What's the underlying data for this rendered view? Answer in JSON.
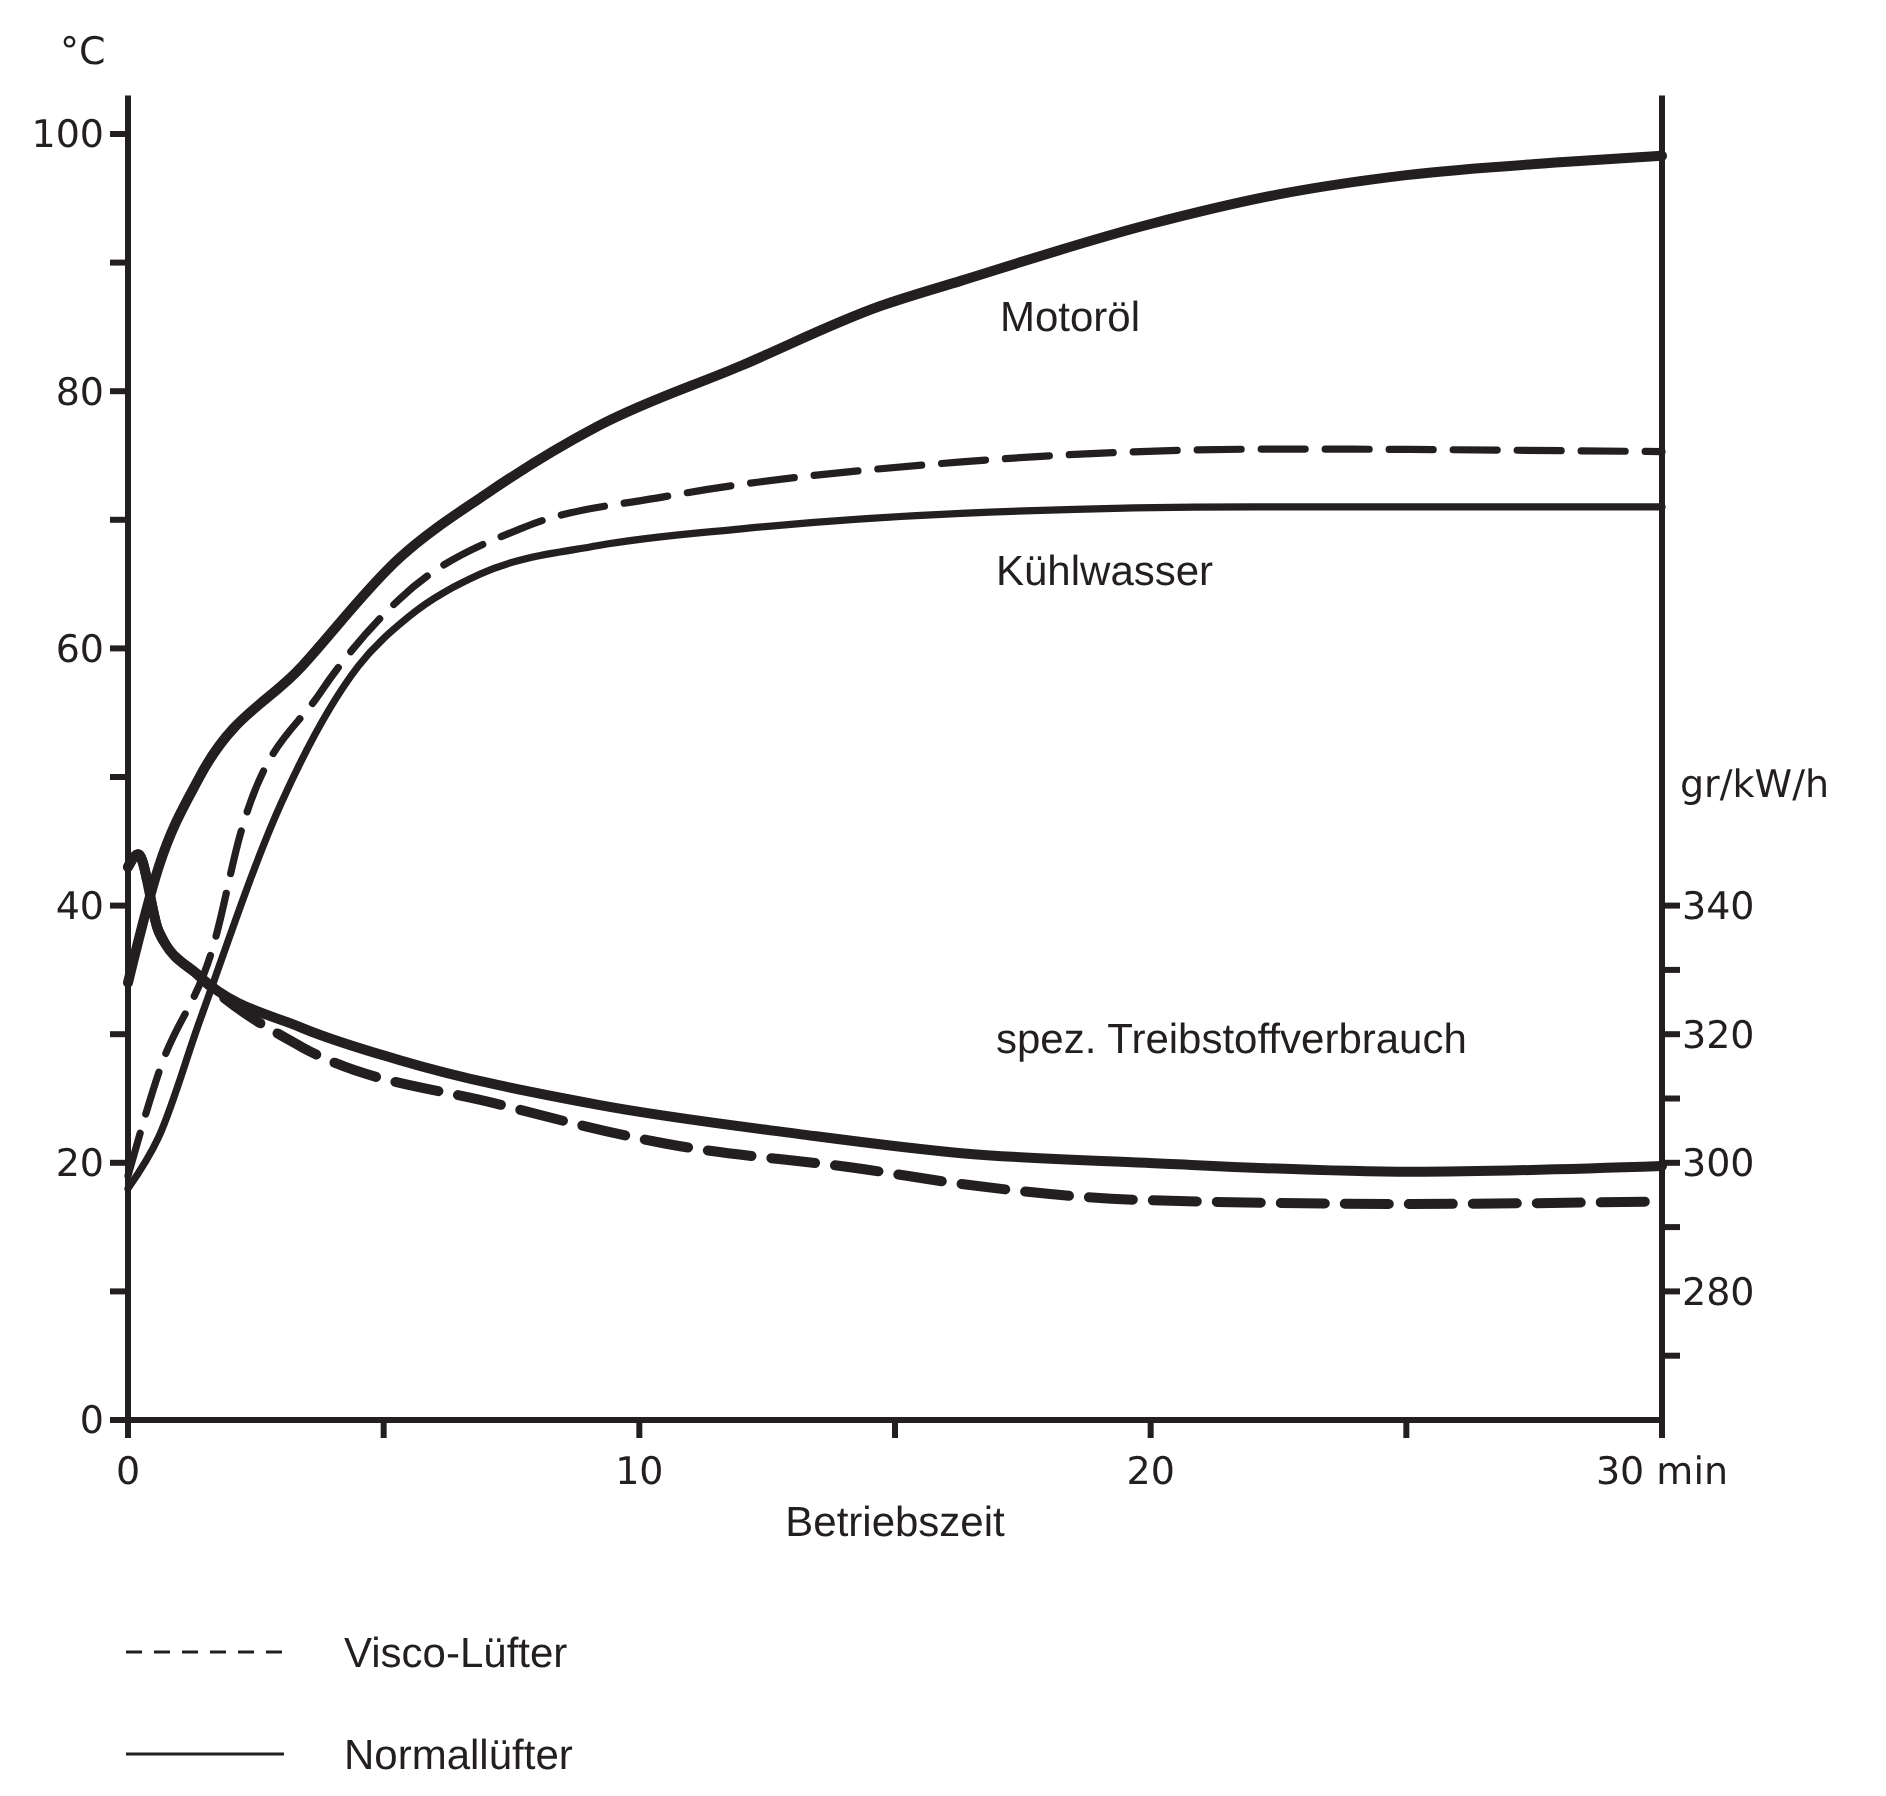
{
  "chart_data": {
    "type": "line",
    "xlabel": "Betriebszeit",
    "ylabel": "°C",
    "y2label": "gr/kW/h",
    "xlim": [
      0,
      30
    ],
    "xticks": [
      0,
      {
        "value": 5,
        "label": null
      },
      10,
      {
        "value": 15,
        "label": null
      },
      20,
      {
        "value": 25,
        "label": null
      },
      {
        "value": 30,
        "label": "30 min"
      }
    ],
    "ylim": [
      0,
      103
    ],
    "yticks": [
      0,
      {
        "value": 10,
        "label": null
      },
      20,
      {
        "value": 30,
        "label": null
      },
      40,
      {
        "value": 50,
        "label": null
      },
      60,
      {
        "value": 70,
        "label": null
      },
      80,
      {
        "value": 90,
        "label": null
      },
      100
    ],
    "y2lim": [
      260,
      466
    ],
    "y2ticks": [
      {
        "value": 270,
        "label": null
      },
      280,
      {
        "value": 290,
        "label": null
      },
      300,
      {
        "value": 310,
        "label": null
      },
      320,
      {
        "value": 330,
        "label": null
      },
      340
    ],
    "grid": false,
    "legend": "bottom",
    "marker": "none",
    "series": [
      {
        "color": "#231f20",
        "line_style": "solid",
        "x": [
          0,
          0.6,
          1.4,
          3.4,
          5.3,
          7,
          9.2,
          12,
          14.7,
          16.3,
          20,
          22.5,
          25,
          28,
          30
        ],
        "values": [
          34,
          43,
          50,
          58.6,
          67,
          72,
          77.3,
          82,
          86.6,
          88.6,
          93,
          95.3,
          96.8,
          97.8,
          98.3
        ]
      },
      {
        "name": "Visco-Lüfter",
        "color": "#231f20",
        "line_style": "dashed",
        "x": [
          0,
          0.6,
          1.7,
          2.2,
          3.75,
          5.3,
          7.8,
          10.5,
          16.3,
          22.5,
          30
        ],
        "values": [
          19,
          27,
          37.3,
          45.6,
          56.5,
          63.8,
          69.5,
          71.8,
          74.5,
          75.5,
          75.3
        ]
      },
      {
        "name": "Normallüfter",
        "color": "#231f20",
        "line_style": "solid",
        "x": [
          0,
          0.6,
          1.4,
          3,
          4.5,
          5.5,
          6.9,
          9.2,
          12,
          16.3,
          22,
          30
        ],
        "values": [
          18,
          22,
          31,
          48,
          58.6,
          62.5,
          65.8,
          68,
          69.3,
          70.5,
          71,
          71
        ]
      },
      {
        "color": "#231f20",
        "line_style": "solid",
        "axis": "y2",
        "x": [
          0,
          0.2,
          0.6,
          1.4,
          3.4,
          5.3,
          9.2,
          13.1,
          16.3,
          19.9,
          25.1,
          30
        ],
        "values": [
          346,
          348,
          336,
          329,
          321,
          316,
          309,
          304.5,
          301.5,
          300,
          298.6,
          299.5
        ]
      },
      {
        "color": "#231f20",
        "line_style": "dashed",
        "axis": "y2",
        "x": [
          0,
          0.2,
          0.6,
          1.4,
          3.4,
          7.3,
          10.5,
          14.4,
          16.3,
          19.9,
          25.1,
          30
        ],
        "values": [
          346,
          348,
          336,
          329,
          318,
          309,
          303,
          299,
          296.7,
          294.2,
          293.6,
          294
        ]
      }
    ],
    "annotations": [
      "Motoröl",
      "Kühlwasser",
      "spez. Treibstoffverbrauch"
    ]
  }
}
